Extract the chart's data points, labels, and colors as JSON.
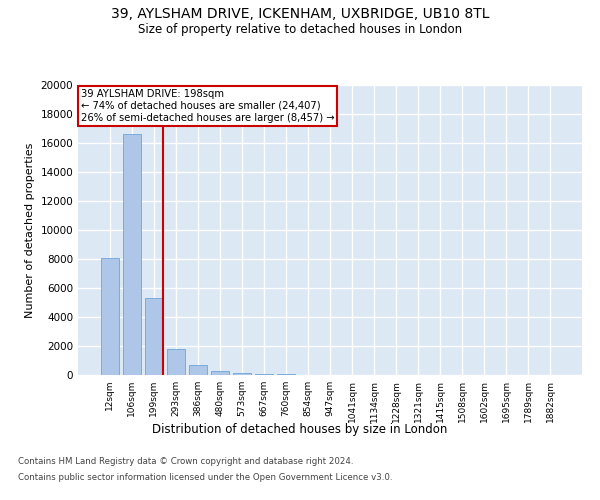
{
  "title_line1": "39, AYLSHAM DRIVE, ICKENHAM, UXBRIDGE, UB10 8TL",
  "title_line2": "Size of property relative to detached houses in London",
  "xlabel": "Distribution of detached houses by size in London",
  "ylabel": "Number of detached properties",
  "categories": [
    "12sqm",
    "106sqm",
    "199sqm",
    "293sqm",
    "386sqm",
    "480sqm",
    "573sqm",
    "667sqm",
    "760sqm",
    "854sqm",
    "947sqm",
    "1041sqm",
    "1134sqm",
    "1228sqm",
    "1321sqm",
    "1415sqm",
    "1508sqm",
    "1602sqm",
    "1695sqm",
    "1789sqm",
    "1882sqm"
  ],
  "values": [
    8100,
    16600,
    5300,
    1800,
    700,
    280,
    150,
    80,
    40,
    10,
    5,
    2,
    2,
    1,
    1,
    0,
    0,
    0,
    0,
    0,
    0
  ],
  "bar_color": "#aec6e8",
  "bar_edge_color": "#5b9bd5",
  "red_line_index": 2,
  "red_line_color": "#cc0000",
  "annotation_text": "39 AYLSHAM DRIVE: 198sqm\n← 74% of detached houses are smaller (24,407)\n26% of semi-detached houses are larger (8,457) →",
  "annotation_box_color": "white",
  "annotation_box_edge_color": "#cc0000",
  "ylim": [
    0,
    20000
  ],
  "yticks": [
    0,
    2000,
    4000,
    6000,
    8000,
    10000,
    12000,
    14000,
    16000,
    18000,
    20000
  ],
  "bg_color": "#dde8f5",
  "grid_color": "white",
  "footer_line1": "Contains HM Land Registry data © Crown copyright and database right 2024.",
  "footer_line2": "Contains public sector information licensed under the Open Government Licence v3.0."
}
